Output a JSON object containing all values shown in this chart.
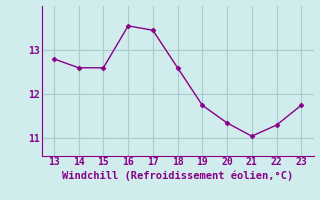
{
  "x": [
    13,
    14,
    15,
    16,
    17,
    18,
    19,
    20,
    21,
    22,
    23
  ],
  "y": [
    12.8,
    12.6,
    12.6,
    13.55,
    13.45,
    12.6,
    11.75,
    11.35,
    11.05,
    11.3,
    11.75
  ],
  "line_color": "#880088",
  "marker": "D",
  "marker_size": 2.5,
  "bg_color": "#d0ecec",
  "grid_color": "#aacccc",
  "xlabel": "Windchill (Refroidissement éolien,°C)",
  "xlabel_color": "#880088",
  "tick_color": "#880088",
  "spine_color": "#880088",
  "xlim": [
    12.5,
    23.5
  ],
  "ylim": [
    10.6,
    14.0
  ],
  "xticks": [
    13,
    14,
    15,
    16,
    17,
    18,
    19,
    20,
    21,
    22,
    23
  ],
  "yticks": [
    11,
    12,
    13
  ],
  "ytick_labels": [
    "11",
    "12",
    "13"
  ],
  "tick_fontsize": 7,
  "xlabel_fontsize": 7.5
}
